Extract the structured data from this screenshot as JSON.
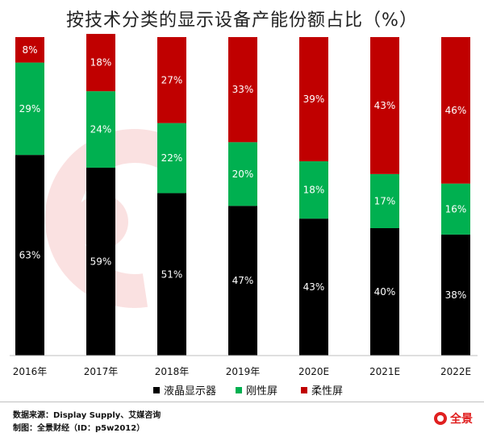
{
  "chart_data": {
    "type": "bar",
    "stacked": true,
    "title": "按技术分类的显示设备产能份额占比（%）",
    "categories": [
      "2016年",
      "2017年",
      "2018年",
      "2019年",
      "2020E",
      "2021E",
      "2022E"
    ],
    "series": [
      {
        "name": "液晶显示器",
        "color": "#000000",
        "values": [
          63,
          59,
          51,
          47,
          43,
          40,
          38
        ]
      },
      {
        "name": "刚性屏",
        "color": "#00b050",
        "values": [
          29,
          24,
          22,
          20,
          18,
          17,
          16
        ]
      },
      {
        "name": "柔性屏",
        "color": "#c00000",
        "values": [
          8,
          18,
          27,
          33,
          39,
          43,
          46
        ]
      }
    ],
    "value_suffix": "%",
    "ylim": [
      0,
      100
    ],
    "grid": false,
    "legend_position": "bottom"
  },
  "footer": {
    "source": "数据来源：Display  Supply、艾媒咨询",
    "credit": "制图：全景财经（ID：p5w2012）",
    "logo_text": "全景"
  }
}
